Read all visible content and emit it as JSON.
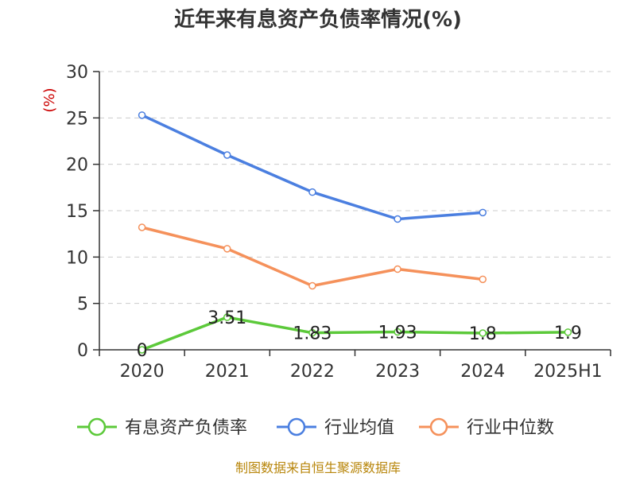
{
  "chart_data": {
    "type": "line",
    "title": "近年来有息资产负债率情况(%)",
    "ylabel": "(%)",
    "categories": [
      "2020",
      "2021",
      "2022",
      "2023",
      "2024",
      "2025H1"
    ],
    "yticks": [
      "0",
      "5",
      "10",
      "15",
      "20",
      "25",
      "30"
    ],
    "ylim": [
      0,
      30
    ],
    "grid": true,
    "legend_position": "bottom",
    "series": [
      {
        "name": "有息资产负债率",
        "color": "#5cc93a",
        "values": [
          0,
          3.51,
          1.83,
          1.93,
          1.8,
          1.9
        ],
        "labels": [
          "0",
          "3.51",
          "1.83",
          "1.93",
          "1.8",
          "1.9"
        ]
      },
      {
        "name": "行业均值",
        "color": "#4b7fe0",
        "values": [
          25.3,
          21.0,
          17.0,
          14.1,
          14.8,
          null
        ]
      },
      {
        "name": "行业中位数",
        "color": "#f5915b",
        "values": [
          13.2,
          10.9,
          6.9,
          8.7,
          7.6,
          null
        ]
      }
    ],
    "source": "制图数据来自恒生聚源数据库"
  }
}
